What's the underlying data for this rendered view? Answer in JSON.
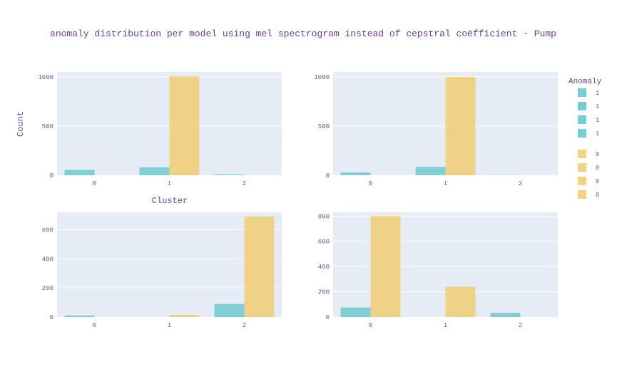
{
  "chart_data": {
    "type": "bar",
    "title": "anomaly distribution per model using mel spectrogram instead of cepstral coëfficient - Pump",
    "layout": "grouped bars, 2x2 subplot grid",
    "colors": {
      "anomaly_1": "#5fc4c8",
      "anomaly_0": "#f2ce72",
      "plot_bg": "#e5ecf6",
      "text": "#6a3d9a"
    },
    "xlabel": "Cluster",
    "ylabel": "Count",
    "grid": true,
    "legend": {
      "title": "Anomaly",
      "placement": "right",
      "entries": [
        {
          "label": "1",
          "series": "anomaly_1"
        },
        {
          "label": "1",
          "series": "anomaly_1"
        },
        {
          "label": "1",
          "series": "anomaly_1"
        },
        {
          "label": "1",
          "series": "anomaly_1"
        },
        {
          "label": "0",
          "series": "anomaly_0"
        },
        {
          "label": "0",
          "series": "anomaly_0"
        },
        {
          "label": "0",
          "series": "anomaly_0"
        },
        {
          "label": "0",
          "series": "anomaly_0"
        }
      ]
    },
    "subplots": [
      {
        "categories": [
          "0",
          "1",
          "2"
        ],
        "ylim": [
          0,
          1050
        ],
        "yticks": [
          0,
          500,
          1000
        ],
        "series": [
          {
            "name": "1",
            "key": "anomaly_1",
            "values": [
              55,
              80,
              8
            ]
          },
          {
            "name": "0",
            "key": "anomaly_0",
            "values": [
              0,
              1005,
              0
            ]
          }
        ]
      },
      {
        "categories": [
          "0",
          "1",
          "2"
        ],
        "ylim": [
          0,
          1050
        ],
        "yticks": [
          0,
          500,
          1000
        ],
        "series": [
          {
            "name": "1",
            "key": "anomaly_1",
            "values": [
              28,
              85,
              2
            ]
          },
          {
            "name": "0",
            "key": "anomaly_0",
            "values": [
              0,
              1000,
              0
            ]
          }
        ]
      },
      {
        "categories": [
          "0",
          "1",
          "2"
        ],
        "ylim": [
          0,
          720
        ],
        "yticks": [
          0,
          200,
          400,
          600
        ],
        "series": [
          {
            "name": "1",
            "key": "anomaly_1",
            "values": [
              10,
              0,
              90
            ]
          },
          {
            "name": "0",
            "key": "anomaly_0",
            "values": [
              0,
              15,
              690
            ]
          }
        ]
      },
      {
        "categories": [
          "0",
          "1",
          "2"
        ],
        "ylim": [
          0,
          830
        ],
        "yticks": [
          0,
          200,
          400,
          600,
          800
        ],
        "series": [
          {
            "name": "1",
            "key": "anomaly_1",
            "values": [
              75,
              0,
              33
            ]
          },
          {
            "name": "0",
            "key": "anomaly_0",
            "values": [
              800,
              240,
              0
            ]
          }
        ]
      }
    ]
  }
}
